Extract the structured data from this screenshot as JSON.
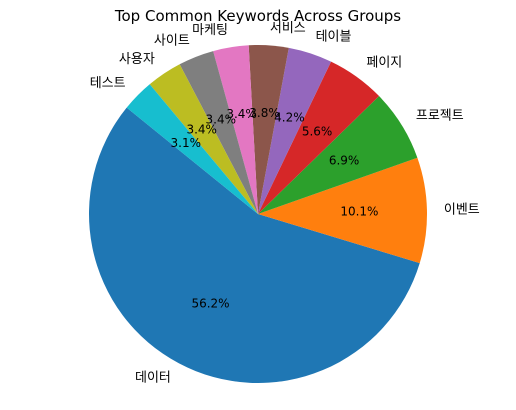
{
  "chart_data": {
    "type": "pie",
    "title": "Top Common Keywords Across Groups",
    "start_angle_deg": 141,
    "direction": "counterclockwise",
    "slices": [
      {
        "label": "데이터",
        "value": 56.2,
        "pct_label": "56.2%",
        "color": "#1f77b4"
      },
      {
        "label": "이벤트",
        "value": 10.1,
        "pct_label": "10.1%",
        "color": "#ff7f0e"
      },
      {
        "label": "프로젝트",
        "value": 6.9,
        "pct_label": "6.9%",
        "color": "#2ca02c"
      },
      {
        "label": "페이지",
        "value": 5.6,
        "pct_label": "5.6%",
        "color": "#d62728"
      },
      {
        "label": "테이블",
        "value": 4.2,
        "pct_label": "4.2%",
        "color": "#9467bd"
      },
      {
        "label": "서비스",
        "value": 3.8,
        "pct_label": "3.8%",
        "color": "#8c564b"
      },
      {
        "label": "마케팅",
        "value": 3.4,
        "pct_label": "3.4%",
        "color": "#e377c2"
      },
      {
        "label": "사이트",
        "value": 3.4,
        "pct_label": "3.4%",
        "color": "#7f7f7f"
      },
      {
        "label": "사용자",
        "value": 3.4,
        "pct_label": "3.4%",
        "color": "#bcbd22"
      },
      {
        "label": "테스트",
        "value": 3.1,
        "pct_label": "3.1%",
        "color": "#17becf"
      }
    ]
  }
}
